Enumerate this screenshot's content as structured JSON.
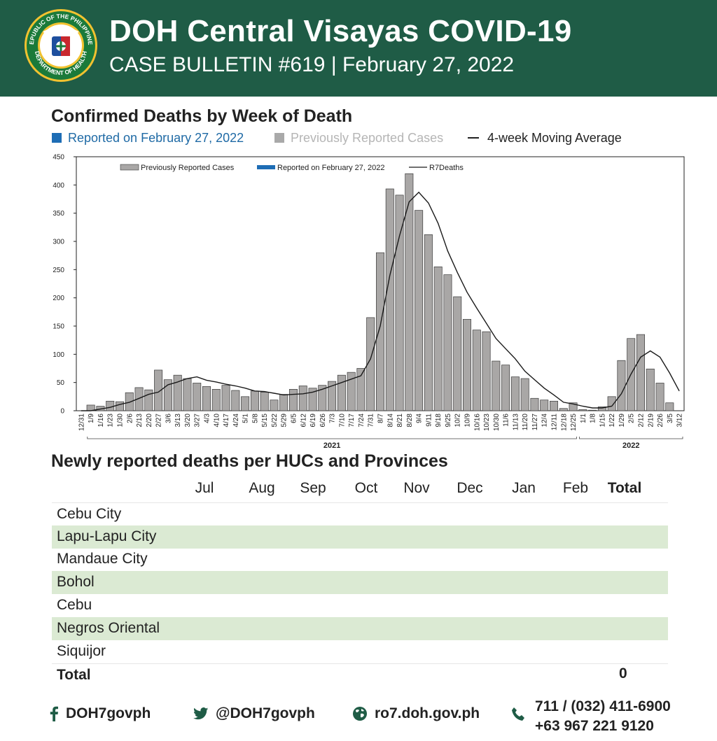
{
  "header": {
    "title": "DOH Central Visayas COVID-19",
    "subtitle": "CASE BULLETIN #619 | February 27, 2022",
    "seal": {
      "ring_top": "REPUBLIC OF THE PHILIPPINES",
      "ring_bottom": "DEPARTMENT OF HEALTH"
    }
  },
  "chart_legend": {
    "reported": "Reported on February 27, 2022",
    "previous": "Previously Reported Cases",
    "moving_avg": "4-week Moving Average",
    "colors": {
      "reported": "#1e6db5",
      "previous": "#a9a9a9",
      "line": "#222222",
      "previous_text": "#b5b5b5",
      "reported_text": "#1f6aa5"
    }
  },
  "chart_data": {
    "type": "bar",
    "title": "Confirmed Deaths by Week of Death",
    "ylim": [
      0,
      450
    ],
    "yticks": [
      0,
      50,
      100,
      150,
      200,
      250,
      300,
      350,
      400,
      450
    ],
    "inner_legend": [
      "Previously Reported Cases",
      "Reported on February 27, 2022",
      "R7Deaths"
    ],
    "categories": [
      "12/31",
      "1/9",
      "1/16",
      "1/23",
      "1/30",
      "2/6",
      "2/13",
      "2/20",
      "2/27",
      "3/6",
      "3/13",
      "3/20",
      "3/27",
      "4/3",
      "4/10",
      "4/17",
      "4/24",
      "5/1",
      "5/8",
      "5/15",
      "5/22",
      "5/29",
      "6/5",
      "6/12",
      "6/19",
      "6/26",
      "7/3",
      "7/10",
      "7/17",
      "7/24",
      "7/31",
      "8/7",
      "8/14",
      "8/21",
      "8/28",
      "9/4",
      "9/11",
      "9/18",
      "9/25",
      "10/2",
      "10/9",
      "10/16",
      "10/23",
      "10/30",
      "11/6",
      "11/13",
      "11/20",
      "11/27",
      "12/4",
      "12/11",
      "12/18",
      "12/25",
      "1/1",
      "1/8",
      "1/15",
      "1/22",
      "1/29",
      "2/5",
      "2/12",
      "2/19",
      "2/26",
      "3/5",
      "3/12"
    ],
    "year_groups": [
      {
        "label": "2021",
        "start": "1/9",
        "end": "12/25"
      },
      {
        "label": "2022",
        "start": "1/1",
        "end": "3/12"
      }
    ],
    "series": [
      {
        "name": "Previously Reported Cases",
        "values": [
          0,
          10,
          8,
          17,
          16,
          32,
          41,
          37,
          72,
          55,
          63,
          57,
          49,
          43,
          38,
          45,
          36,
          25,
          35,
          33,
          19,
          29,
          38,
          44,
          40,
          45,
          52,
          63,
          68,
          75,
          165,
          280,
          393,
          382,
          420,
          355,
          312,
          255,
          241,
          202,
          162,
          143,
          140,
          88,
          81,
          60,
          57,
          22,
          19,
          17,
          4,
          14,
          2,
          1,
          7,
          25,
          89,
          128,
          135,
          74,
          49,
          14,
          0
        ]
      },
      {
        "name": "Reported on February 27, 2022",
        "values": [
          0,
          0,
          0,
          0,
          0,
          0,
          0,
          0,
          0,
          0,
          0,
          0,
          0,
          0,
          0,
          0,
          0,
          0,
          0,
          0,
          0,
          0,
          0,
          0,
          0,
          0,
          0,
          0,
          0,
          0,
          0,
          0,
          0,
          0,
          0,
          0,
          0,
          0,
          0,
          0,
          0,
          0,
          0,
          0,
          0,
          0,
          0,
          0,
          0,
          0,
          0,
          0,
          0,
          0,
          0,
          0,
          0,
          0,
          0,
          0,
          0,
          0,
          0
        ]
      },
      {
        "name": "R7Deaths",
        "values": [
          0,
          0,
          3,
          6,
          11,
          15,
          22,
          29,
          33,
          46,
          51,
          57,
          60,
          54,
          51,
          47,
          44,
          40,
          35,
          34,
          31,
          28,
          29,
          30,
          33,
          38,
          44,
          50,
          56,
          62,
          92,
          150,
          240,
          310,
          370,
          387,
          368,
          332,
          283,
          245,
          210,
          182,
          155,
          128,
          110,
          92,
          70,
          55,
          40,
          28,
          15,
          12,
          8,
          5,
          5,
          8,
          30,
          65,
          95,
          106,
          95,
          67,
          35
        ]
      }
    ]
  },
  "table": {
    "title": "Newly reported deaths per HUCs and Provinces",
    "columns": [
      "Jul",
      "Aug",
      "Sep",
      "Oct",
      "Nov",
      "Dec",
      "Jan",
      "Feb",
      "Total"
    ],
    "rows": [
      "Cebu City",
      "Lapu-Lapu City",
      "Mandaue City",
      "Bohol",
      "Cebu",
      "Negros Oriental",
      "Siquijor"
    ],
    "total_label": "Total",
    "total_value": "0"
  },
  "footer": {
    "facebook": "DOH7govph",
    "twitter": "@DOH7govph",
    "website": "ro7.doh.gov.ph",
    "phone_1": "711 / (032) 411-6900",
    "phone_2": "+63 967 221 9120"
  }
}
